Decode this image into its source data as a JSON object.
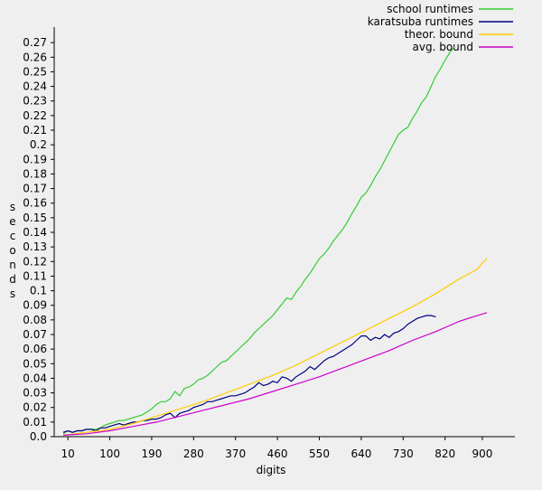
{
  "chart_data": {
    "type": "line",
    "title": "",
    "xlabel": "digits",
    "ylabel": "seconds",
    "xlim": [
      0,
      970
    ],
    "ylim": [
      0,
      0.28
    ],
    "xticks": [
      10,
      100,
      190,
      280,
      370,
      460,
      550,
      640,
      730,
      820,
      900
    ],
    "yticks": [
      "0.0",
      "0.01",
      "0.02",
      "0.03",
      "0.04",
      "0.05",
      "0.06",
      "0.07",
      "0.08",
      "0.09",
      "0.1",
      "0.11",
      "0.12",
      "0.13",
      "0.14",
      "0.15",
      "0.16",
      "0.17",
      "0.18",
      "0.19",
      "0.2",
      "0.21",
      "0.22",
      "0.23",
      "0.24",
      "0.25",
      "0.26",
      "0.27"
    ],
    "legend_position": "top-right",
    "grid": false,
    "series": [
      {
        "name": "school runtimes",
        "color": "#33cc33",
        "points": [
          [
            0,
            0.002
          ],
          [
            10,
            0.004
          ],
          [
            20,
            0.003
          ],
          [
            30,
            0.004
          ],
          [
            40,
            0.004
          ],
          [
            50,
            0.005
          ],
          [
            60,
            0.005
          ],
          [
            70,
            0.005
          ],
          [
            80,
            0.006
          ],
          [
            90,
            0.008
          ],
          [
            100,
            0.009
          ],
          [
            110,
            0.01
          ],
          [
            120,
            0.011
          ],
          [
            130,
            0.011
          ],
          [
            140,
            0.012
          ],
          [
            150,
            0.013
          ],
          [
            160,
            0.014
          ],
          [
            170,
            0.015
          ],
          [
            180,
            0.017
          ],
          [
            190,
            0.019
          ],
          [
            200,
            0.022
          ],
          [
            210,
            0.024
          ],
          [
            220,
            0.024
          ],
          [
            230,
            0.026
          ],
          [
            240,
            0.031
          ],
          [
            250,
            0.028
          ],
          [
            260,
            0.033
          ],
          [
            270,
            0.034
          ],
          [
            280,
            0.036
          ],
          [
            290,
            0.039
          ],
          [
            300,
            0.04
          ],
          [
            310,
            0.042
          ],
          [
            320,
            0.045
          ],
          [
            330,
            0.048
          ],
          [
            340,
            0.051
          ],
          [
            350,
            0.052
          ],
          [
            360,
            0.055
          ],
          [
            370,
            0.058
          ],
          [
            380,
            0.061
          ],
          [
            390,
            0.064
          ],
          [
            400,
            0.067
          ],
          [
            410,
            0.071
          ],
          [
            420,
            0.074
          ],
          [
            430,
            0.077
          ],
          [
            440,
            0.08
          ],
          [
            450,
            0.083
          ],
          [
            460,
            0.087
          ],
          [
            470,
            0.091
          ],
          [
            480,
            0.095
          ],
          [
            490,
            0.094
          ],
          [
            500,
            0.099
          ],
          [
            510,
            0.103
          ],
          [
            520,
            0.108
          ],
          [
            530,
            0.112
          ],
          [
            540,
            0.117
          ],
          [
            550,
            0.122
          ],
          [
            560,
            0.125
          ],
          [
            570,
            0.129
          ],
          [
            580,
            0.134
          ],
          [
            590,
            0.138
          ],
          [
            600,
            0.142
          ],
          [
            610,
            0.147
          ],
          [
            620,
            0.153
          ],
          [
            630,
            0.158
          ],
          [
            640,
            0.164
          ],
          [
            650,
            0.167
          ],
          [
            660,
            0.172
          ],
          [
            670,
            0.178
          ],
          [
            680,
            0.183
          ],
          [
            690,
            0.189
          ],
          [
            700,
            0.195
          ],
          [
            710,
            0.201
          ],
          [
            720,
            0.207
          ],
          [
            730,
            0.21
          ],
          [
            740,
            0.212
          ],
          [
            750,
            0.218
          ],
          [
            760,
            0.223
          ],
          [
            770,
            0.229
          ],
          [
            780,
            0.233
          ],
          [
            790,
            0.24
          ],
          [
            800,
            0.247
          ],
          [
            810,
            0.252
          ],
          [
            820,
            0.258
          ],
          [
            830,
            0.263
          ],
          [
            840,
            0.267
          ]
        ]
      },
      {
        "name": "karatsuba runtimes",
        "color": "#000080",
        "points": [
          [
            0,
            0.003
          ],
          [
            10,
            0.004
          ],
          [
            20,
            0.003
          ],
          [
            30,
            0.004
          ],
          [
            40,
            0.004
          ],
          [
            50,
            0.005
          ],
          [
            60,
            0.005
          ],
          [
            70,
            0.004
          ],
          [
            80,
            0.006
          ],
          [
            90,
            0.006
          ],
          [
            100,
            0.007
          ],
          [
            110,
            0.008
          ],
          [
            120,
            0.009
          ],
          [
            130,
            0.008
          ],
          [
            140,
            0.009
          ],
          [
            150,
            0.01
          ],
          [
            160,
            0.01
          ],
          [
            170,
            0.011
          ],
          [
            180,
            0.011
          ],
          [
            190,
            0.012
          ],
          [
            200,
            0.012
          ],
          [
            210,
            0.013
          ],
          [
            220,
            0.015
          ],
          [
            230,
            0.016
          ],
          [
            240,
            0.013
          ],
          [
            250,
            0.016
          ],
          [
            260,
            0.017
          ],
          [
            270,
            0.018
          ],
          [
            280,
            0.02
          ],
          [
            290,
            0.021
          ],
          [
            300,
            0.022
          ],
          [
            310,
            0.024
          ],
          [
            320,
            0.024
          ],
          [
            330,
            0.025
          ],
          [
            340,
            0.026
          ],
          [
            350,
            0.027
          ],
          [
            360,
            0.028
          ],
          [
            370,
            0.028
          ],
          [
            380,
            0.029
          ],
          [
            390,
            0.03
          ],
          [
            400,
            0.032
          ],
          [
            410,
            0.034
          ],
          [
            420,
            0.037
          ],
          [
            430,
            0.035
          ],
          [
            440,
            0.036
          ],
          [
            450,
            0.038
          ],
          [
            460,
            0.037
          ],
          [
            470,
            0.041
          ],
          [
            480,
            0.04
          ],
          [
            490,
            0.038
          ],
          [
            500,
            0.041
          ],
          [
            510,
            0.043
          ],
          [
            520,
            0.045
          ],
          [
            530,
            0.048
          ],
          [
            540,
            0.046
          ],
          [
            550,
            0.049
          ],
          [
            560,
            0.052
          ],
          [
            570,
            0.054
          ],
          [
            580,
            0.055
          ],
          [
            590,
            0.057
          ],
          [
            600,
            0.059
          ],
          [
            610,
            0.061
          ],
          [
            620,
            0.063
          ],
          [
            630,
            0.066
          ],
          [
            640,
            0.069
          ],
          [
            650,
            0.069
          ],
          [
            660,
            0.066
          ],
          [
            670,
            0.068
          ],
          [
            680,
            0.067
          ],
          [
            690,
            0.07
          ],
          [
            700,
            0.068
          ],
          [
            710,
            0.071
          ],
          [
            720,
            0.072
          ],
          [
            730,
            0.074
          ],
          [
            740,
            0.077
          ],
          [
            750,
            0.079
          ],
          [
            760,
            0.081
          ],
          [
            770,
            0.082
          ],
          [
            780,
            0.083
          ],
          [
            790,
            0.083
          ],
          [
            800,
            0.082
          ]
        ]
      },
      {
        "name": "theor. bound",
        "color": "#ffcc00",
        "points": [
          [
            0,
            0.001
          ],
          [
            50,
            0.003
          ],
          [
            100,
            0.005
          ],
          [
            150,
            0.009
          ],
          [
            200,
            0.014
          ],
          [
            250,
            0.019
          ],
          [
            300,
            0.024
          ],
          [
            350,
            0.03
          ],
          [
            400,
            0.036
          ],
          [
            450,
            0.042
          ],
          [
            500,
            0.049
          ],
          [
            550,
            0.057
          ],
          [
            600,
            0.065
          ],
          [
            650,
            0.073
          ],
          [
            700,
            0.081
          ],
          [
            750,
            0.089
          ],
          [
            800,
            0.098
          ],
          [
            850,
            0.108
          ],
          [
            890,
            0.115
          ],
          [
            900,
            0.119
          ],
          [
            910,
            0.122
          ]
        ]
      },
      {
        "name": "avg. bound",
        "color": "#cc00cc",
        "points": [
          [
            0,
            0.001
          ],
          [
            50,
            0.002
          ],
          [
            100,
            0.004
          ],
          [
            150,
            0.007
          ],
          [
            200,
            0.01
          ],
          [
            250,
            0.014
          ],
          [
            300,
            0.018
          ],
          [
            350,
            0.022
          ],
          [
            400,
            0.026
          ],
          [
            450,
            0.031
          ],
          [
            500,
            0.036
          ],
          [
            550,
            0.041
          ],
          [
            600,
            0.047
          ],
          [
            650,
            0.053
          ],
          [
            700,
            0.059
          ],
          [
            750,
            0.066
          ],
          [
            800,
            0.072
          ],
          [
            850,
            0.079
          ],
          [
            880,
            0.082
          ],
          [
            910,
            0.085
          ]
        ]
      }
    ]
  }
}
